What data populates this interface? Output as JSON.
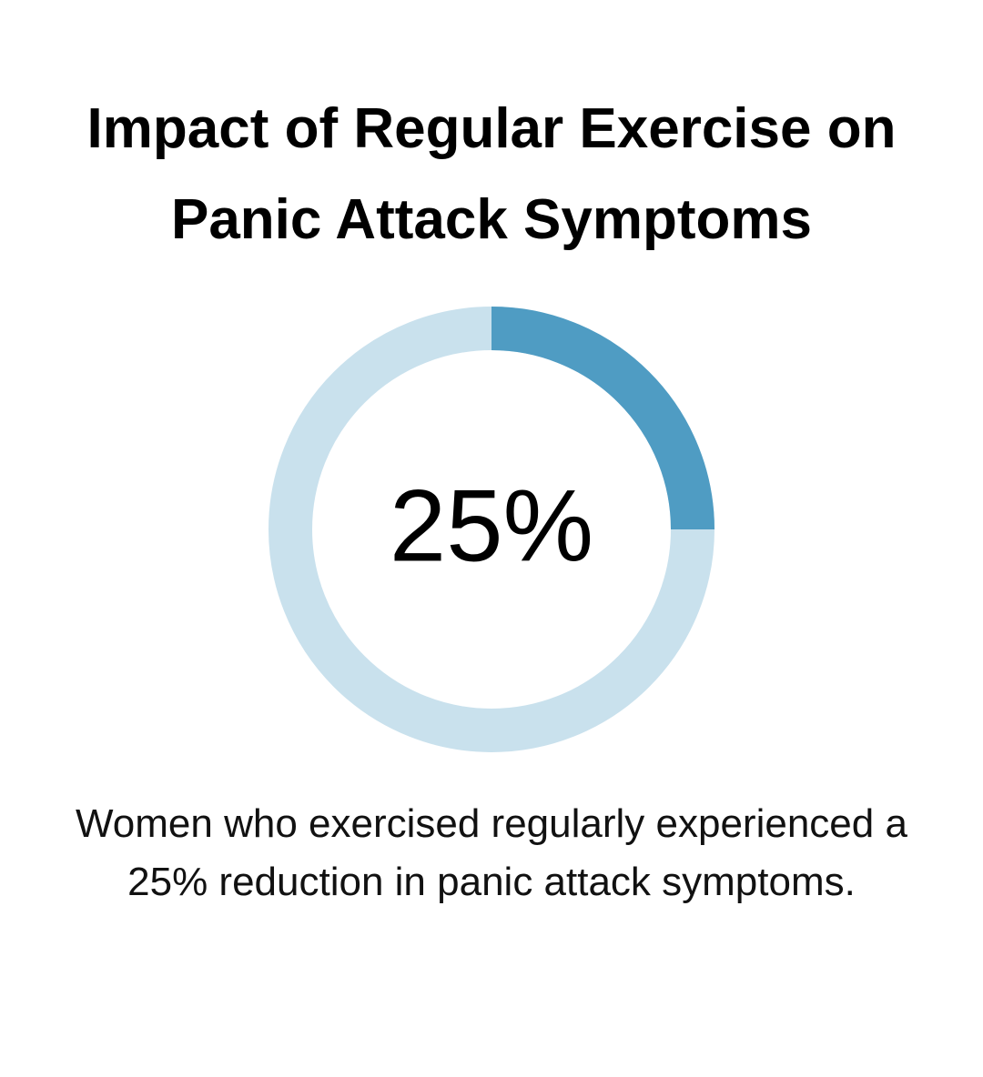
{
  "chart_data": {
    "type": "donut",
    "title": "Impact of Regular Exercise on Panic Attack Symptoms",
    "values": [
      25
    ],
    "value_labels": [
      "25%"
    ],
    "range": [
      0,
      100
    ],
    "color": "#4f9cc3",
    "track_color": "#c9e1ed",
    "caption": "Women who exercised regularly experienced a 25% reduction in panic attack symptoms."
  }
}
